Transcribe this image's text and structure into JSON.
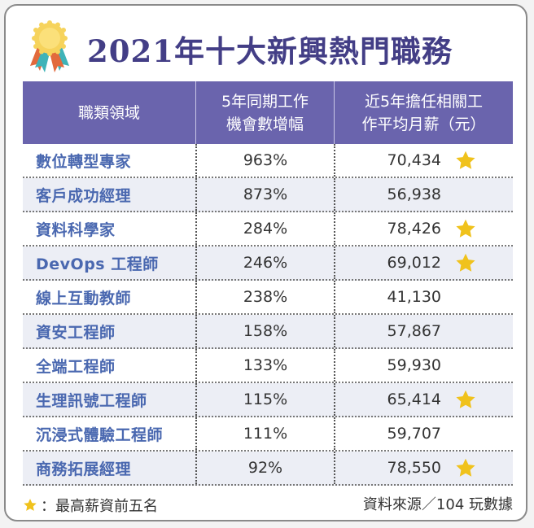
{
  "title": "2021年十大新興熱門職務",
  "icons": {
    "header": "medal-ribbon-icon",
    "top_salary": "star-icon"
  },
  "colors": {
    "title": "#433e86",
    "header_bg": "#6a64ad",
    "job_name": "#4a68b0",
    "star": "#f0c21c",
    "alt_row_bg": "#eceef5"
  },
  "table": {
    "headers": [
      "職類領域",
      "5年同期工作\n機會數增幅",
      "近5年擔任相關工\n作平均月薪（元）"
    ],
    "header_lines": {
      "col2": [
        "5年同期工作",
        "機會數增幅"
      ],
      "col3": [
        "近5年擔任相關工",
        "作平均月薪（元）"
      ]
    },
    "rows": [
      {
        "job": "數位轉型專家",
        "growth": "963%",
        "salary": "70,434",
        "top5": true
      },
      {
        "job": "客戶成功經理",
        "growth": "873%",
        "salary": "56,938",
        "top5": false
      },
      {
        "job": "資料科學家",
        "growth": "284%",
        "salary": "78,426",
        "top5": true
      },
      {
        "job": "DevOps 工程師",
        "growth": "246%",
        "salary": "69,012",
        "top5": true
      },
      {
        "job": "線上互動教師",
        "growth": "238%",
        "salary": "41,130",
        "top5": false
      },
      {
        "job": "資安工程師",
        "growth": "158%",
        "salary": "57,867",
        "top5": false
      },
      {
        "job": "全端工程師",
        "growth": "133%",
        "salary": "59,930",
        "top5": false
      },
      {
        "job": "生理訊號工程師",
        "growth": "115%",
        "salary": "65,414",
        "top5": true
      },
      {
        "job": "沉浸式體驗工程師",
        "growth": "111%",
        "salary": "59,707",
        "top5": false
      },
      {
        "job": "商務拓展經理",
        "growth": "92%",
        "salary": "78,550",
        "top5": true
      }
    ]
  },
  "footer": {
    "legend": "：最高薪資前五名",
    "source": "資料來源／104 玩數據"
  }
}
